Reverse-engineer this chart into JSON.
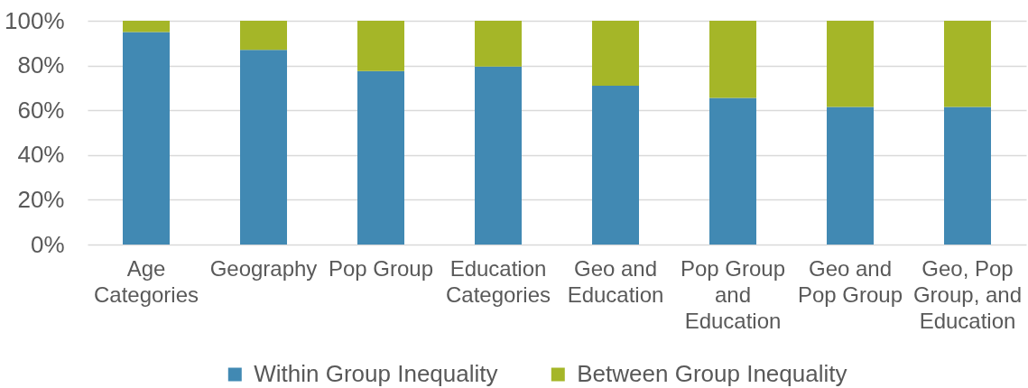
{
  "chart_data": {
    "type": "bar",
    "stacked": true,
    "categories": [
      "Age Categories",
      "Geography",
      "Pop Group",
      "Education Categories",
      "Geo and Education",
      "Pop Group and Education",
      "Geo and Pop Group",
      "Geo, Pop Group, and Education"
    ],
    "series": [
      {
        "name": "Within Group Inequality",
        "color": "#4189b3",
        "values": [
          95,
          87,
          77.5,
          79.5,
          71,
          65.5,
          61.5,
          61.5
        ]
      },
      {
        "name": "Between Group Inequality",
        "color": "#a5b628",
        "values": [
          5,
          13,
          22.5,
          20.5,
          29,
          34.5,
          38.5,
          38.5
        ]
      }
    ],
    "ylim": [
      0,
      100
    ],
    "yticks": [
      {
        "value": 0,
        "label": "0%"
      },
      {
        "value": 20,
        "label": "20%"
      },
      {
        "value": 40,
        "label": "40%"
      },
      {
        "value": 60,
        "label": "60%"
      },
      {
        "value": 80,
        "label": "80%"
      },
      {
        "value": 100,
        "label": "100%"
      }
    ],
    "grid": "y",
    "legend": "bottom"
  }
}
